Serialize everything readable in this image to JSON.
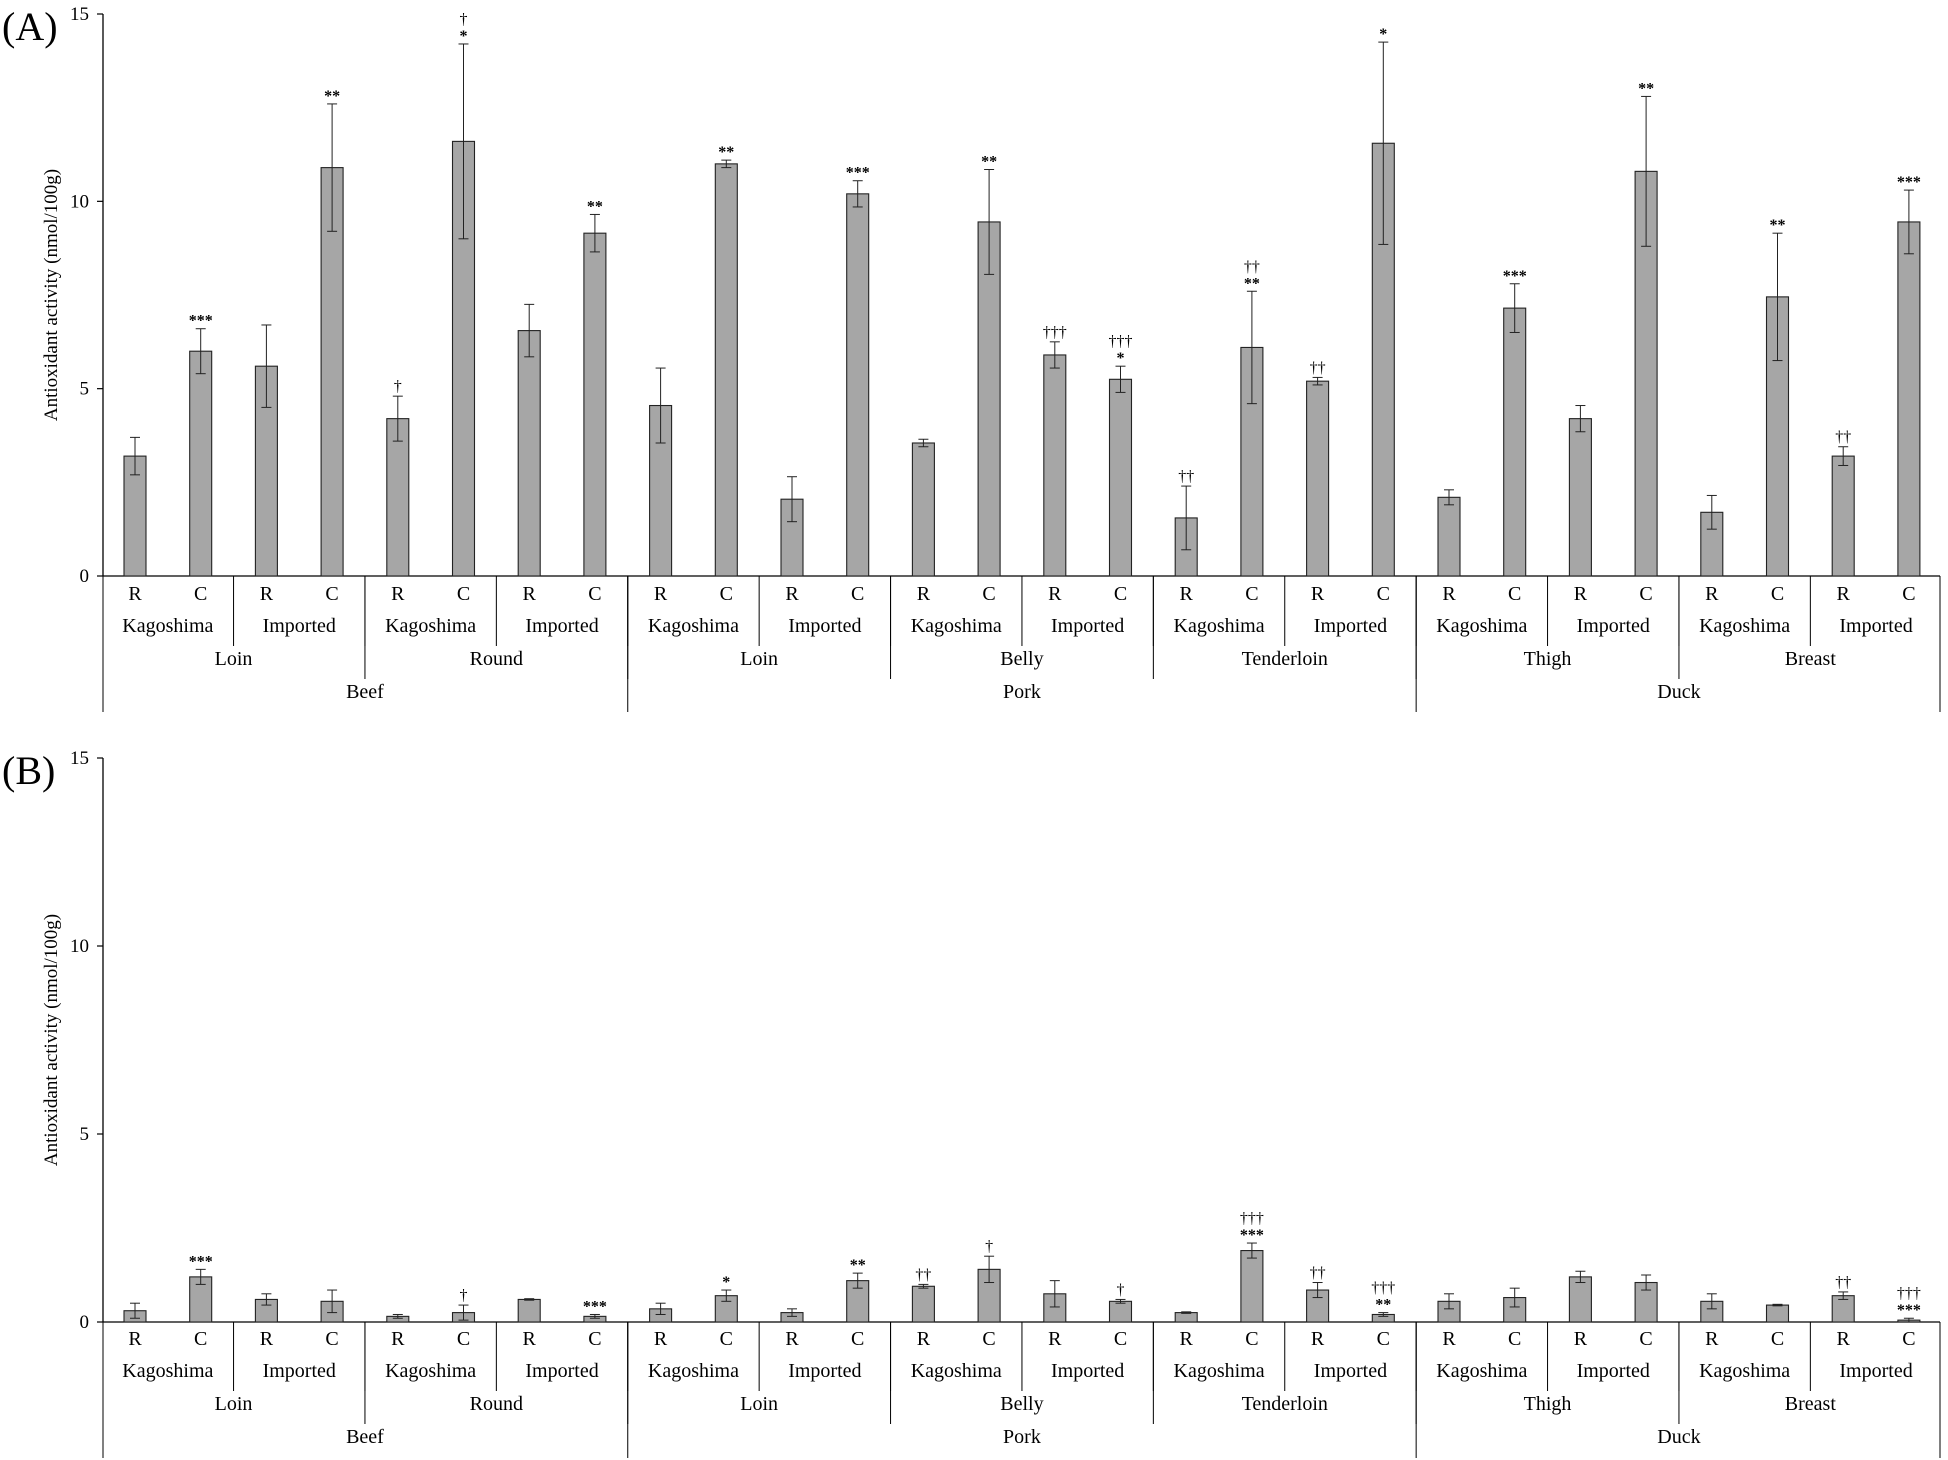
{
  "colors": {
    "bar": "#a6a6a6",
    "bar_edge": "#222222",
    "axis": "#000000"
  },
  "chart_data": [
    {
      "type": "bar",
      "panel": "(A)",
      "ylabel": "Antioxidant activity (nmol/100g)",
      "ylim": [
        0,
        15
      ],
      "yticks": [
        "0",
        "5",
        "10",
        "15"
      ],
      "category_levels": {
        "treatment": [
          "R",
          "C",
          "R",
          "C",
          "R",
          "C",
          "R",
          "C",
          "R",
          "C",
          "R",
          "C",
          "R",
          "C",
          "R",
          "C",
          "R",
          "C",
          "R",
          "C",
          "R",
          "C",
          "R",
          "C",
          "R",
          "C",
          "R",
          "C"
        ],
        "origin": [
          "Kagoshima",
          "Imported",
          "Kagoshima",
          "Imported",
          "Kagoshima",
          "Imported",
          "Kagoshima",
          "Imported",
          "Kagoshima",
          "Imported",
          "Kagoshima",
          "Imported",
          "Kagoshima",
          "Imported"
        ],
        "cut": [
          "Loin",
          "Round",
          "Loin",
          "Belly",
          "Tenderloin",
          "Thigh",
          "Breast"
        ],
        "meat": [
          "Beef",
          "Pork",
          "Duck"
        ]
      },
      "values": [
        3.2,
        6.0,
        5.6,
        10.9,
        4.2,
        11.6,
        6.55,
        9.15,
        4.55,
        11.0,
        2.05,
        10.2,
        3.55,
        9.45,
        5.9,
        5.25,
        1.55,
        6.1,
        5.2,
        11.55,
        2.1,
        7.15,
        4.2,
        10.8,
        1.7,
        7.45,
        3.2,
        9.45
      ],
      "errors": [
        0.5,
        0.6,
        1.1,
        1.7,
        0.6,
        2.6,
        0.7,
        0.5,
        1.0,
        0.1,
        0.6,
        0.35,
        0.1,
        1.4,
        0.35,
        0.35,
        0.85,
        1.5,
        0.1,
        2.7,
        0.2,
        0.65,
        0.35,
        2.0,
        0.45,
        1.7,
        0.25,
        0.85
      ],
      "significance": [
        "",
        "***",
        "",
        "**",
        "",
        "*",
        "",
        "**",
        "",
        "**",
        "",
        "***",
        "",
        "**",
        "",
        "*",
        "",
        "**",
        "",
        "*",
        "",
        "***",
        "",
        "**",
        "",
        "**",
        "",
        "***"
      ],
      "dagger": [
        "",
        "",
        "",
        "",
        "†",
        "†",
        "",
        "",
        "",
        "",
        "",
        "",
        "",
        "",
        "†††",
        "†††",
        "††",
        "††",
        "††",
        "",
        "",
        "",
        "",
        "",
        "",
        "",
        "††",
        ""
      ]
    },
    {
      "type": "bar",
      "panel": "(B)",
      "ylabel": "Antioxidant activity (nmol/100g)",
      "ylim": [
        0,
        15
      ],
      "yticks": [
        "0",
        "5",
        "10",
        "15"
      ],
      "category_levels": {
        "treatment": [
          "R",
          "C",
          "R",
          "C",
          "R",
          "C",
          "R",
          "C",
          "R",
          "C",
          "R",
          "C",
          "R",
          "C",
          "R",
          "C",
          "R",
          "C",
          "R",
          "C",
          "R",
          "C",
          "R",
          "C",
          "R",
          "C",
          "R",
          "C"
        ],
        "origin": [
          "Kagoshima",
          "Imported",
          "Kagoshima",
          "Imported",
          "Kagoshima",
          "Imported",
          "Kagoshima",
          "Imported",
          "Kagoshima",
          "Imported",
          "Kagoshima",
          "Imported",
          "Kagoshima",
          "Imported"
        ],
        "cut": [
          "Loin",
          "Round",
          "Loin",
          "Belly",
          "Tenderloin",
          "Thigh",
          "Breast"
        ],
        "meat": [
          "Beef",
          "Pork",
          "Duck"
        ]
      },
      "values": [
        0.3,
        1.2,
        0.6,
        0.55,
        0.15,
        0.25,
        0.6,
        0.15,
        0.35,
        0.7,
        0.25,
        1.1,
        0.95,
        1.4,
        0.75,
        0.55,
        0.25,
        1.9,
        0.85,
        0.2,
        0.55,
        0.65,
        1.2,
        1.05,
        0.55,
        0.45,
        0.7,
        0.05
      ],
      "errors": [
        0.2,
        0.2,
        0.15,
        0.3,
        0.05,
        0.2,
        0.02,
        0.05,
        0.15,
        0.15,
        0.1,
        0.2,
        0.05,
        0.35,
        0.35,
        0.05,
        0.02,
        0.2,
        0.2,
        0.05,
        0.2,
        0.25,
        0.15,
        0.2,
        0.2,
        0.02,
        0.1,
        0.05
      ],
      "significance": [
        "",
        "***",
        "",
        "",
        "",
        "",
        "",
        "***",
        "",
        "*",
        "",
        "**",
        "",
        "",
        "",
        "",
        "",
        "***",
        "",
        "**",
        "",
        "",
        "",
        "",
        "",
        "",
        "",
        "***"
      ],
      "dagger": [
        "",
        "",
        "",
        "",
        "",
        "†",
        "",
        "",
        "",
        "",
        "",
        "",
        "††",
        "†",
        "",
        "†",
        "",
        "†††",
        "††",
        "†††",
        "",
        "",
        "",
        "",
        "",
        "",
        "††",
        "†††"
      ]
    }
  ]
}
